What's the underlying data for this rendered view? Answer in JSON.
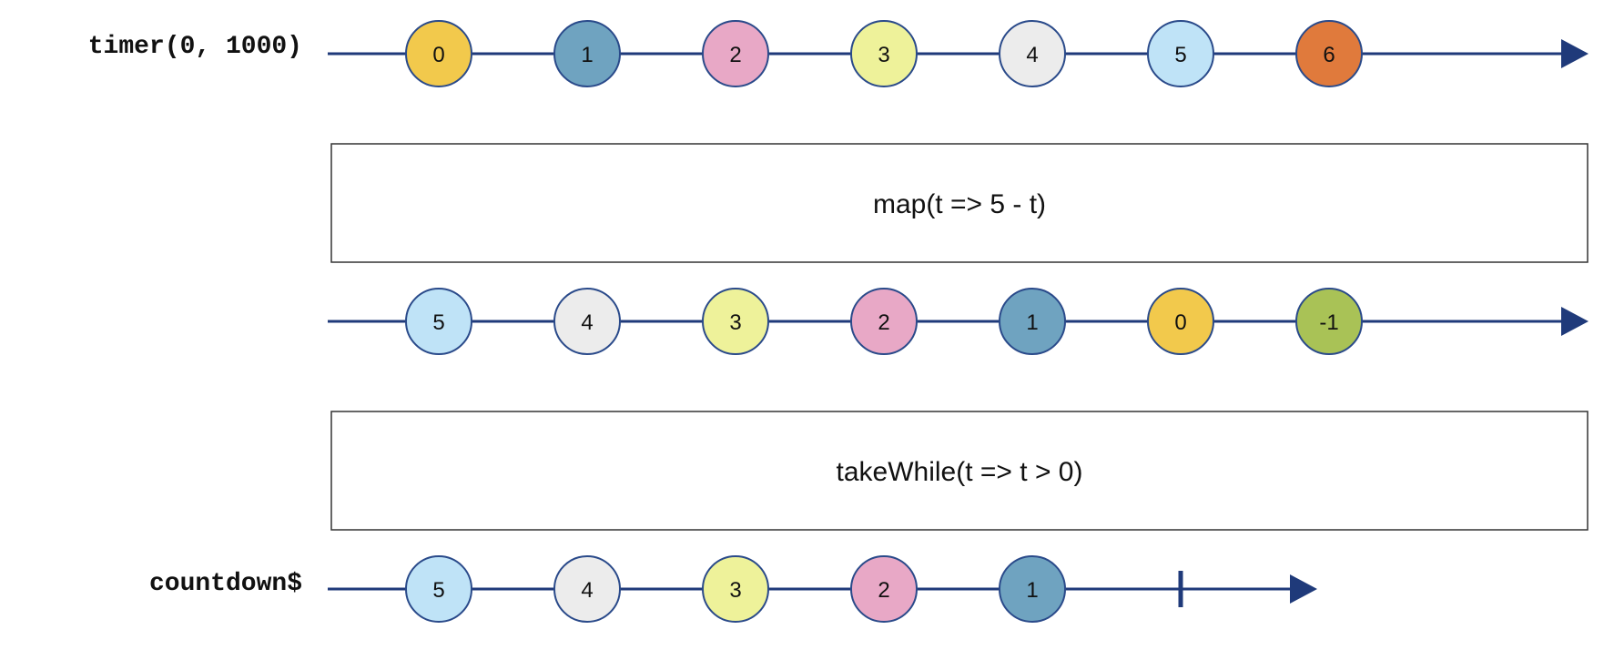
{
  "colors": {
    "line": "#1f3a7a",
    "marble_stroke": "#2a4a8a",
    "box_stroke": "#333333"
  },
  "streams": [
    {
      "id": "timer",
      "label": "timer(0, 1000)",
      "marbles": [
        {
          "value": "0",
          "color": "#f2c94c"
        },
        {
          "value": "1",
          "color": "#6fa3c0"
        },
        {
          "value": "2",
          "color": "#e8a8c6"
        },
        {
          "value": "3",
          "color": "#eef29a"
        },
        {
          "value": "4",
          "color": "#ececec"
        },
        {
          "value": "5",
          "color": "#bfe3f7"
        },
        {
          "value": "6",
          "color": "#e07a3c"
        }
      ],
      "complete": false
    },
    {
      "id": "mapped",
      "label": "",
      "marbles": [
        {
          "value": "5",
          "color": "#bfe3f7"
        },
        {
          "value": "4",
          "color": "#ececec"
        },
        {
          "value": "3",
          "color": "#eef29a"
        },
        {
          "value": "2",
          "color": "#e8a8c6"
        },
        {
          "value": "1",
          "color": "#6fa3c0"
        },
        {
          "value": "0",
          "color": "#f2c94c"
        },
        {
          "value": "-1",
          "color": "#a9c256"
        }
      ],
      "complete": false
    },
    {
      "id": "countdown",
      "label": "countdown$",
      "marbles": [
        {
          "value": "5",
          "color": "#bfe3f7"
        },
        {
          "value": "4",
          "color": "#ececec"
        },
        {
          "value": "3",
          "color": "#eef29a"
        },
        {
          "value": "2",
          "color": "#e8a8c6"
        },
        {
          "value": "1",
          "color": "#6fa3c0"
        }
      ],
      "complete": true
    }
  ],
  "operators": [
    {
      "id": "map",
      "label": "map(t => 5 - t)"
    },
    {
      "id": "takeWhile",
      "label": "takeWhile(t => t > 0)"
    }
  ]
}
